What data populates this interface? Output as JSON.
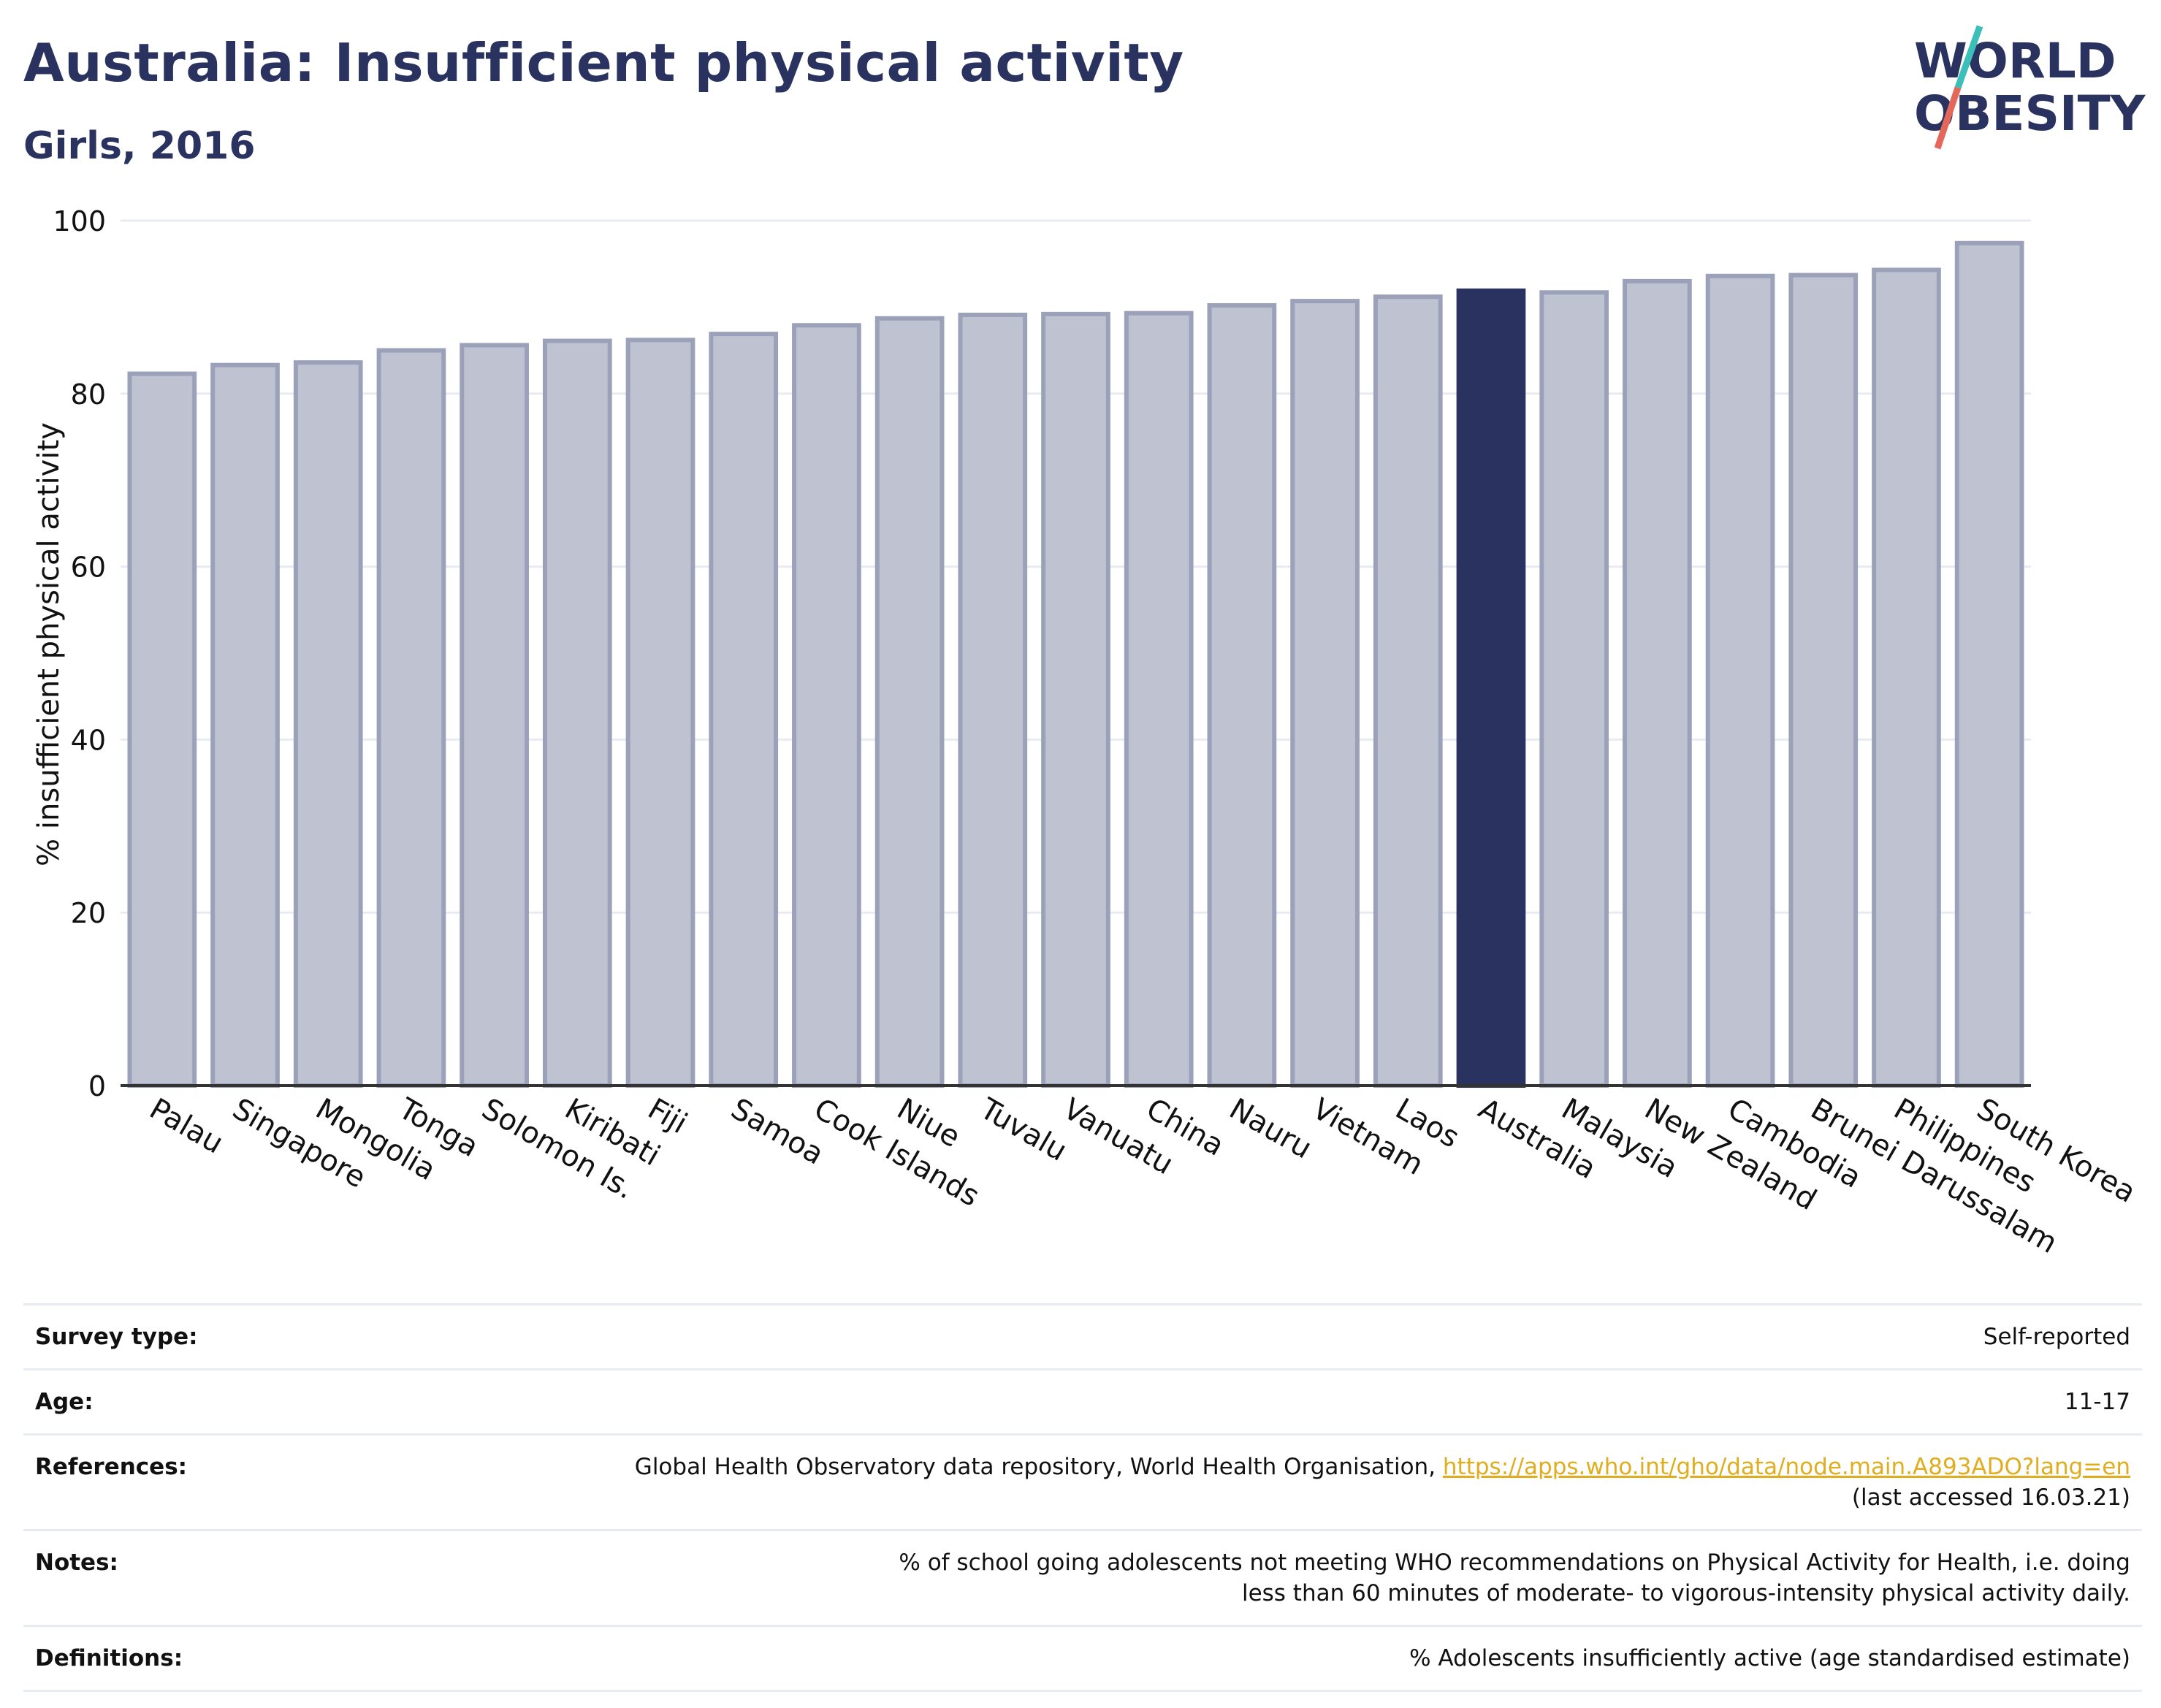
{
  "header": {
    "title": "Australia: Insufficient physical activity",
    "subtitle": "Girls, 2016"
  },
  "logo": {
    "line1": "WORLD",
    "line2": "OBESITY",
    "accent_colors": [
      "#3bbfb8",
      "#e3685a"
    ]
  },
  "colors": {
    "bar_fill": "#bfc3d1",
    "bar_stroke": "#9aa1b9",
    "highlight_fill": "#2a3360",
    "title_color": "#2a3360",
    "link_color": "#e0ad1f"
  },
  "chart_data": {
    "type": "bar",
    "ylabel": "% insufficient physical activity",
    "ylim": [
      0,
      100
    ],
    "yticks": [
      0,
      20,
      40,
      60,
      80,
      100
    ],
    "grid": true,
    "highlight": "Australia",
    "categories": [
      "Palau",
      "Singapore",
      "Mongolia",
      "Tonga",
      "Solomon Is.",
      "Kiribati",
      "Fiji",
      "Samoa",
      "Cook Islands",
      "Niue",
      "Tuvalu",
      "Vanuatu",
      "China",
      "Nauru",
      "Vietnam",
      "Laos",
      "Australia",
      "Malaysia",
      "New Zealand",
      "Cambodia",
      "Brunei Darussalam",
      "Philippines",
      "South Korea"
    ],
    "values": [
      82.3,
      83.3,
      83.6,
      85.0,
      85.6,
      86.1,
      86.2,
      86.9,
      87.9,
      88.7,
      89.1,
      89.2,
      89.3,
      90.2,
      90.7,
      91.2,
      91.9,
      91.7,
      93.0,
      93.6,
      93.7,
      94.3,
      97.4
    ]
  },
  "info": {
    "rows": [
      {
        "label": "Survey type:",
        "value": "Self-reported"
      },
      {
        "label": "Age:",
        "value": "11-17"
      },
      {
        "label": "References:",
        "value_prefix": "Global Health Observatory data repository, World Health Organisation, ",
        "link": "https://apps.who.int/gho/data/node.main.A893ADO?lang=en",
        "value_suffix": "(last accessed 16.03.21)"
      },
      {
        "label": "Notes:",
        "value": "% of school going adolescents not meeting WHO recommendations on Physical Activity for Health, i.e. doing less than 60 minutes of moderate- to vigorous-intensity physical activity daily."
      },
      {
        "label": "Definitions:",
        "value": "% Adolescents insufficiently active (age standardised estimate)"
      }
    ]
  }
}
